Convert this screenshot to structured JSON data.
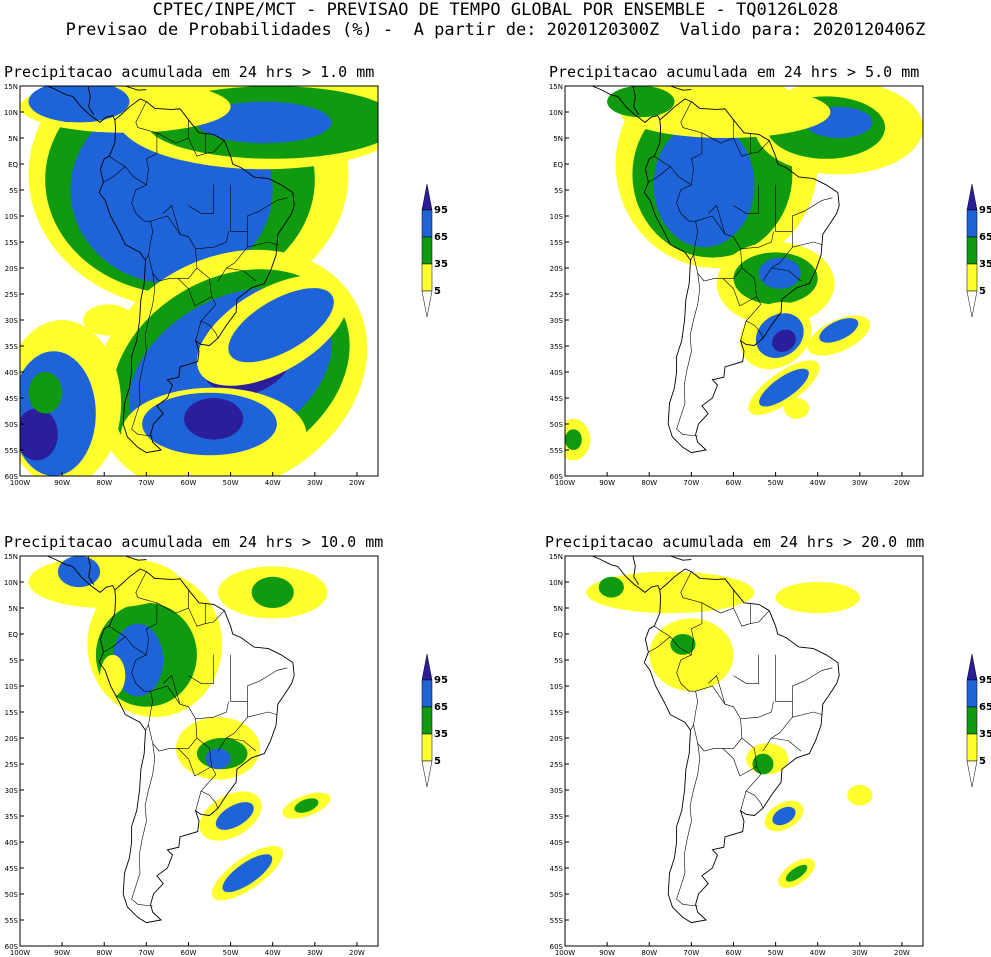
{
  "header": {
    "line1": "CPTEC/INPE/MCT - PREVISAO DE TEMPO GLOBAL POR ENSEMBLE - TQ0126L028",
    "line2": "Previsao de Probabilidades (%) -  A partir de: 2020120300Z  Valido para: 2020120406Z"
  },
  "panels": [
    {
      "title": "Precipitacao acumulada em 24 hrs > 1.0 mm"
    },
    {
      "title": "Precipitacao acumulada em 24 hrs > 5.0 mm"
    },
    {
      "title": "Precipitacao acumulada em 24 hrs > 10.0 mm"
    },
    {
      "title": "Precipitacao acumulada em 24 hrs > 20.0 mm"
    }
  ],
  "lat_labels": [
    "15N",
    "10N",
    "5N",
    "EQ",
    "5S",
    "10S",
    "15S",
    "20S",
    "25S",
    "30S",
    "35S",
    "40S",
    "45S",
    "50S",
    "55S",
    "60S"
  ],
  "lon_labels": [
    "100W",
    "90W",
    "80W",
    "70W",
    "60W",
    "50W",
    "40W",
    "30W",
    "20W"
  ],
  "colorbar": {
    "levels": [
      "5",
      "35",
      "65",
      "95"
    ],
    "colors": [
      "#ffff2e",
      "#109a10",
      "#1e64d8",
      "#2a1e9a"
    ]
  },
  "colors": {
    "white": "#ffffff",
    "yellow": "#ffff2e",
    "green": "#109a10",
    "blue": "#1e64d8",
    "darkblue": "#2a1e9a"
  }
}
